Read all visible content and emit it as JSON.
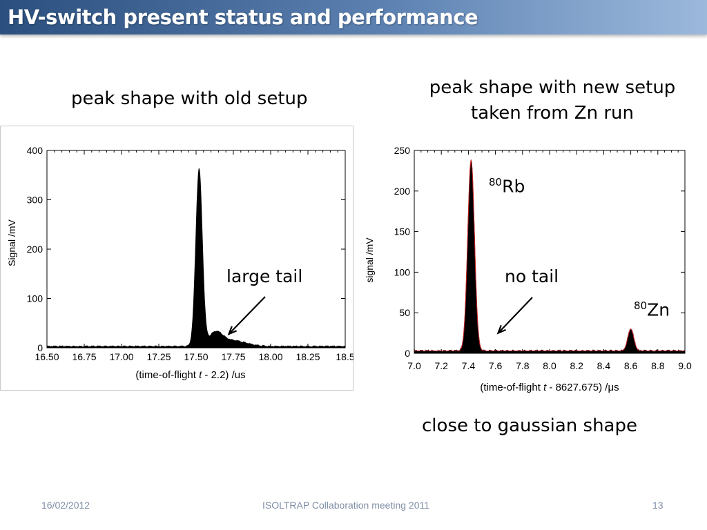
{
  "slide": {
    "title": "HV-switch present status and performance",
    "left_caption": "peak shape with old setup",
    "right_caption_line1": "peak shape with new setup",
    "right_caption_line2": "taken from Zn run",
    "bottom_caption": "close to gaussian shape",
    "footer_date": "16/02/2012",
    "footer_center": "ISOLTRAP Collaboration meeting 2011",
    "footer_page": "13"
  },
  "colors": {
    "title_bar": "#4a6fa0",
    "fit_line": "#cc2222",
    "data": "#000000"
  },
  "chart_data": [
    {
      "type": "area",
      "ylabel": "Signal /mV",
      "xlabel_pre": "(time-of-flight ",
      "xlabel_var": "t",
      "xlabel_post": " - 2.2) /us",
      "xlim": [
        16.5,
        18.5
      ],
      "ylim": [
        0,
        400
      ],
      "xticks": [
        "16.50",
        "16.75",
        "17.00",
        "17.25",
        "17.50",
        "17.75",
        "18.00",
        "18.25",
        "18.5"
      ],
      "yticks": [
        "0",
        "100",
        "200",
        "300",
        "400"
      ],
      "series": [
        {
          "peaks": [
            {
              "center": 17.52,
              "height": 358,
              "width": 0.022
            },
            {
              "center": 17.63,
              "height": 25,
              "width": 0.045
            },
            {
              "center": 17.74,
              "height": 12,
              "width": 0.09
            }
          ],
          "baseline": 3
        }
      ],
      "annotations": [
        {
          "text": "large tail",
          "arrow_to": [
            17.72,
            28
          ]
        }
      ]
    },
    {
      "type": "area",
      "ylabel": "signal /mV",
      "xlabel_pre": "(time-of-flight ",
      "xlabel_var": "t",
      "xlabel_post": " - 8627.675) /μs",
      "xlim": [
        7.0,
        9.0
      ],
      "ylim": [
        0,
        250
      ],
      "xticks": [
        "7.0",
        "7.2",
        "7.4",
        "7.6",
        "7.8",
        "8.0",
        "8.2",
        "8.4",
        "8.6",
        "8.8",
        "9.0"
      ],
      "yticks": [
        "0",
        "50",
        "100",
        "150",
        "200",
        "250"
      ],
      "series": [
        {
          "name": "80Rb",
          "peaks": [
            {
              "center": 7.42,
              "height": 235,
              "width": 0.025
            }
          ],
          "baseline": 3
        },
        {
          "name": "80Zn",
          "peaks": [
            {
              "center": 8.6,
              "height": 27,
              "width": 0.022
            }
          ],
          "baseline": 3
        }
      ],
      "annotations": [
        {
          "text": "no tail",
          "arrow_to": [
            7.62,
            25
          ]
        },
        {
          "label_sup": "80",
          "label": "Rb"
        },
        {
          "label_sup": "80",
          "label": "Zn"
        }
      ]
    }
  ]
}
